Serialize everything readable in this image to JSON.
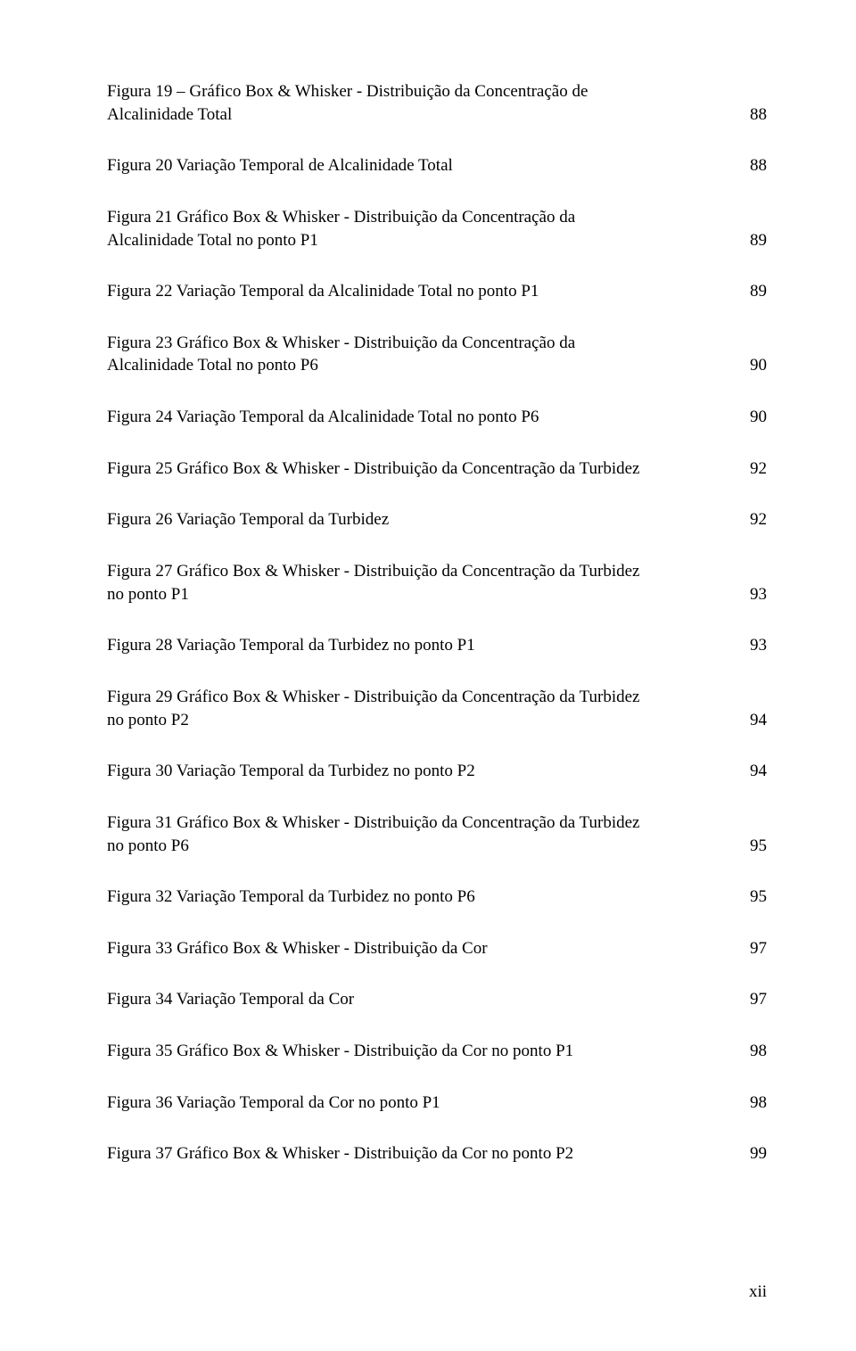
{
  "entries": [
    {
      "text_first": "Figura 19 – Gráfico Box & Whisker - Distribuição da Concentração de",
      "text_last": "Alcalinidade Total",
      "page": "88",
      "multiline": true
    },
    {
      "text_first": "",
      "text_last": "Figura 20 Variação Temporal de Alcalinidade Total",
      "page": "88",
      "multiline": false
    },
    {
      "text_first": "Figura 21 Gráfico Box & Whisker - Distribuição da Concentração da",
      "text_last": "Alcalinidade Total no ponto P1",
      "page": "89",
      "multiline": true
    },
    {
      "text_first": "",
      "text_last": "Figura 22 Variação Temporal da Alcalinidade Total no ponto P1",
      "page": "89",
      "multiline": false
    },
    {
      "text_first": "Figura 23 Gráfico Box & Whisker - Distribuição da Concentração da",
      "text_last": "Alcalinidade Total no ponto P6",
      "page": "90",
      "multiline": true
    },
    {
      "text_first": "",
      "text_last": "Figura 24 Variação Temporal da Alcalinidade Total no ponto P6",
      "page": "90",
      "multiline": false
    },
    {
      "text_first": "",
      "text_last": "Figura 25 Gráfico Box & Whisker - Distribuição da Concentração da Turbidez",
      "page": "92",
      "multiline": false
    },
    {
      "text_first": "",
      "text_last": "Figura 26 Variação Temporal da Turbidez",
      "page": "92",
      "multiline": false
    },
    {
      "text_first": "Figura 27 Gráfico Box & Whisker - Distribuição da Concentração da Turbidez",
      "text_last": "no ponto P1",
      "page": "93",
      "multiline": true
    },
    {
      "text_first": "",
      "text_last": "Figura 28 Variação Temporal da Turbidez no ponto P1",
      "page": "93",
      "multiline": false
    },
    {
      "text_first": "Figura 29 Gráfico Box & Whisker - Distribuição da Concentração da Turbidez",
      "text_last": "no ponto P2",
      "page": "94",
      "multiline": true
    },
    {
      "text_first": "",
      "text_last": "Figura 30 Variação Temporal da Turbidez no ponto P2",
      "page": "94",
      "multiline": false
    },
    {
      "text_first": "Figura 31 Gráfico Box & Whisker - Distribuição da Concentração da Turbidez",
      "text_last": "no ponto P6",
      "page": "95",
      "multiline": true
    },
    {
      "text_first": "",
      "text_last": "Figura 32 Variação Temporal da Turbidez no ponto P6",
      "page": "95",
      "multiline": false
    },
    {
      "text_first": "",
      "text_last": "Figura 33 Gráfico Box & Whisker - Distribuição da Cor",
      "page": "97",
      "multiline": false
    },
    {
      "text_first": "",
      "text_last": "Figura 34 Variação Temporal da Cor",
      "page": "97",
      "multiline": false
    },
    {
      "text_first": "",
      "text_last": "Figura 35 Gráfico Box & Whisker - Distribuição da Cor no ponto P1",
      "page": "98",
      "multiline": false
    },
    {
      "text_first": "",
      "text_last": "Figura 36 Variação Temporal da Cor no ponto P1",
      "page": "98",
      "multiline": false
    },
    {
      "text_first": "",
      "text_last": "Figura 37 Gráfico Box & Whisker - Distribuição da Cor no ponto P2",
      "page": "99",
      "multiline": false
    }
  ],
  "footer": "xii"
}
